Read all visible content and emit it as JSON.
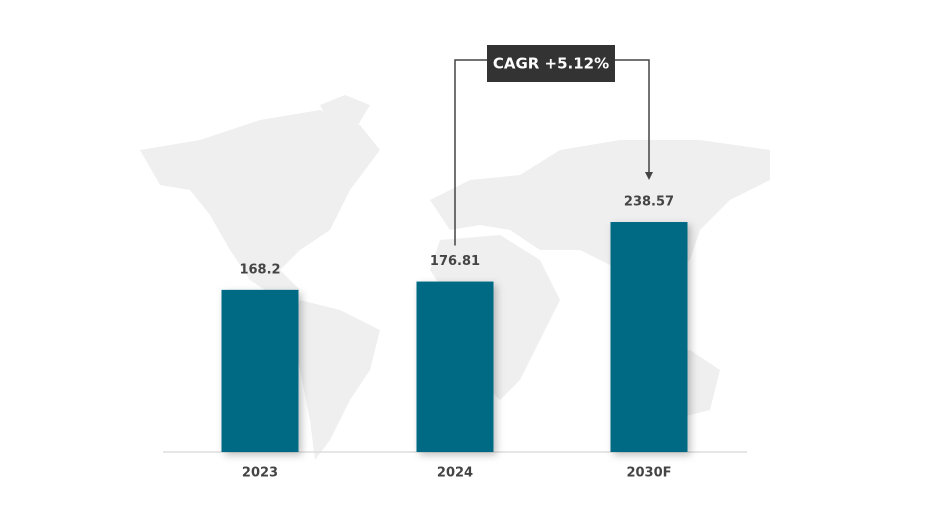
{
  "chart_data": {
    "type": "bar",
    "annotation": "CAGR +5.12%",
    "categories": [
      "2023",
      "2024",
      "2030F"
    ],
    "values": [
      168.2,
      176.81,
      238.57
    ],
    "color": "#036b85",
    "ylim": [
      0,
      250
    ]
  }
}
